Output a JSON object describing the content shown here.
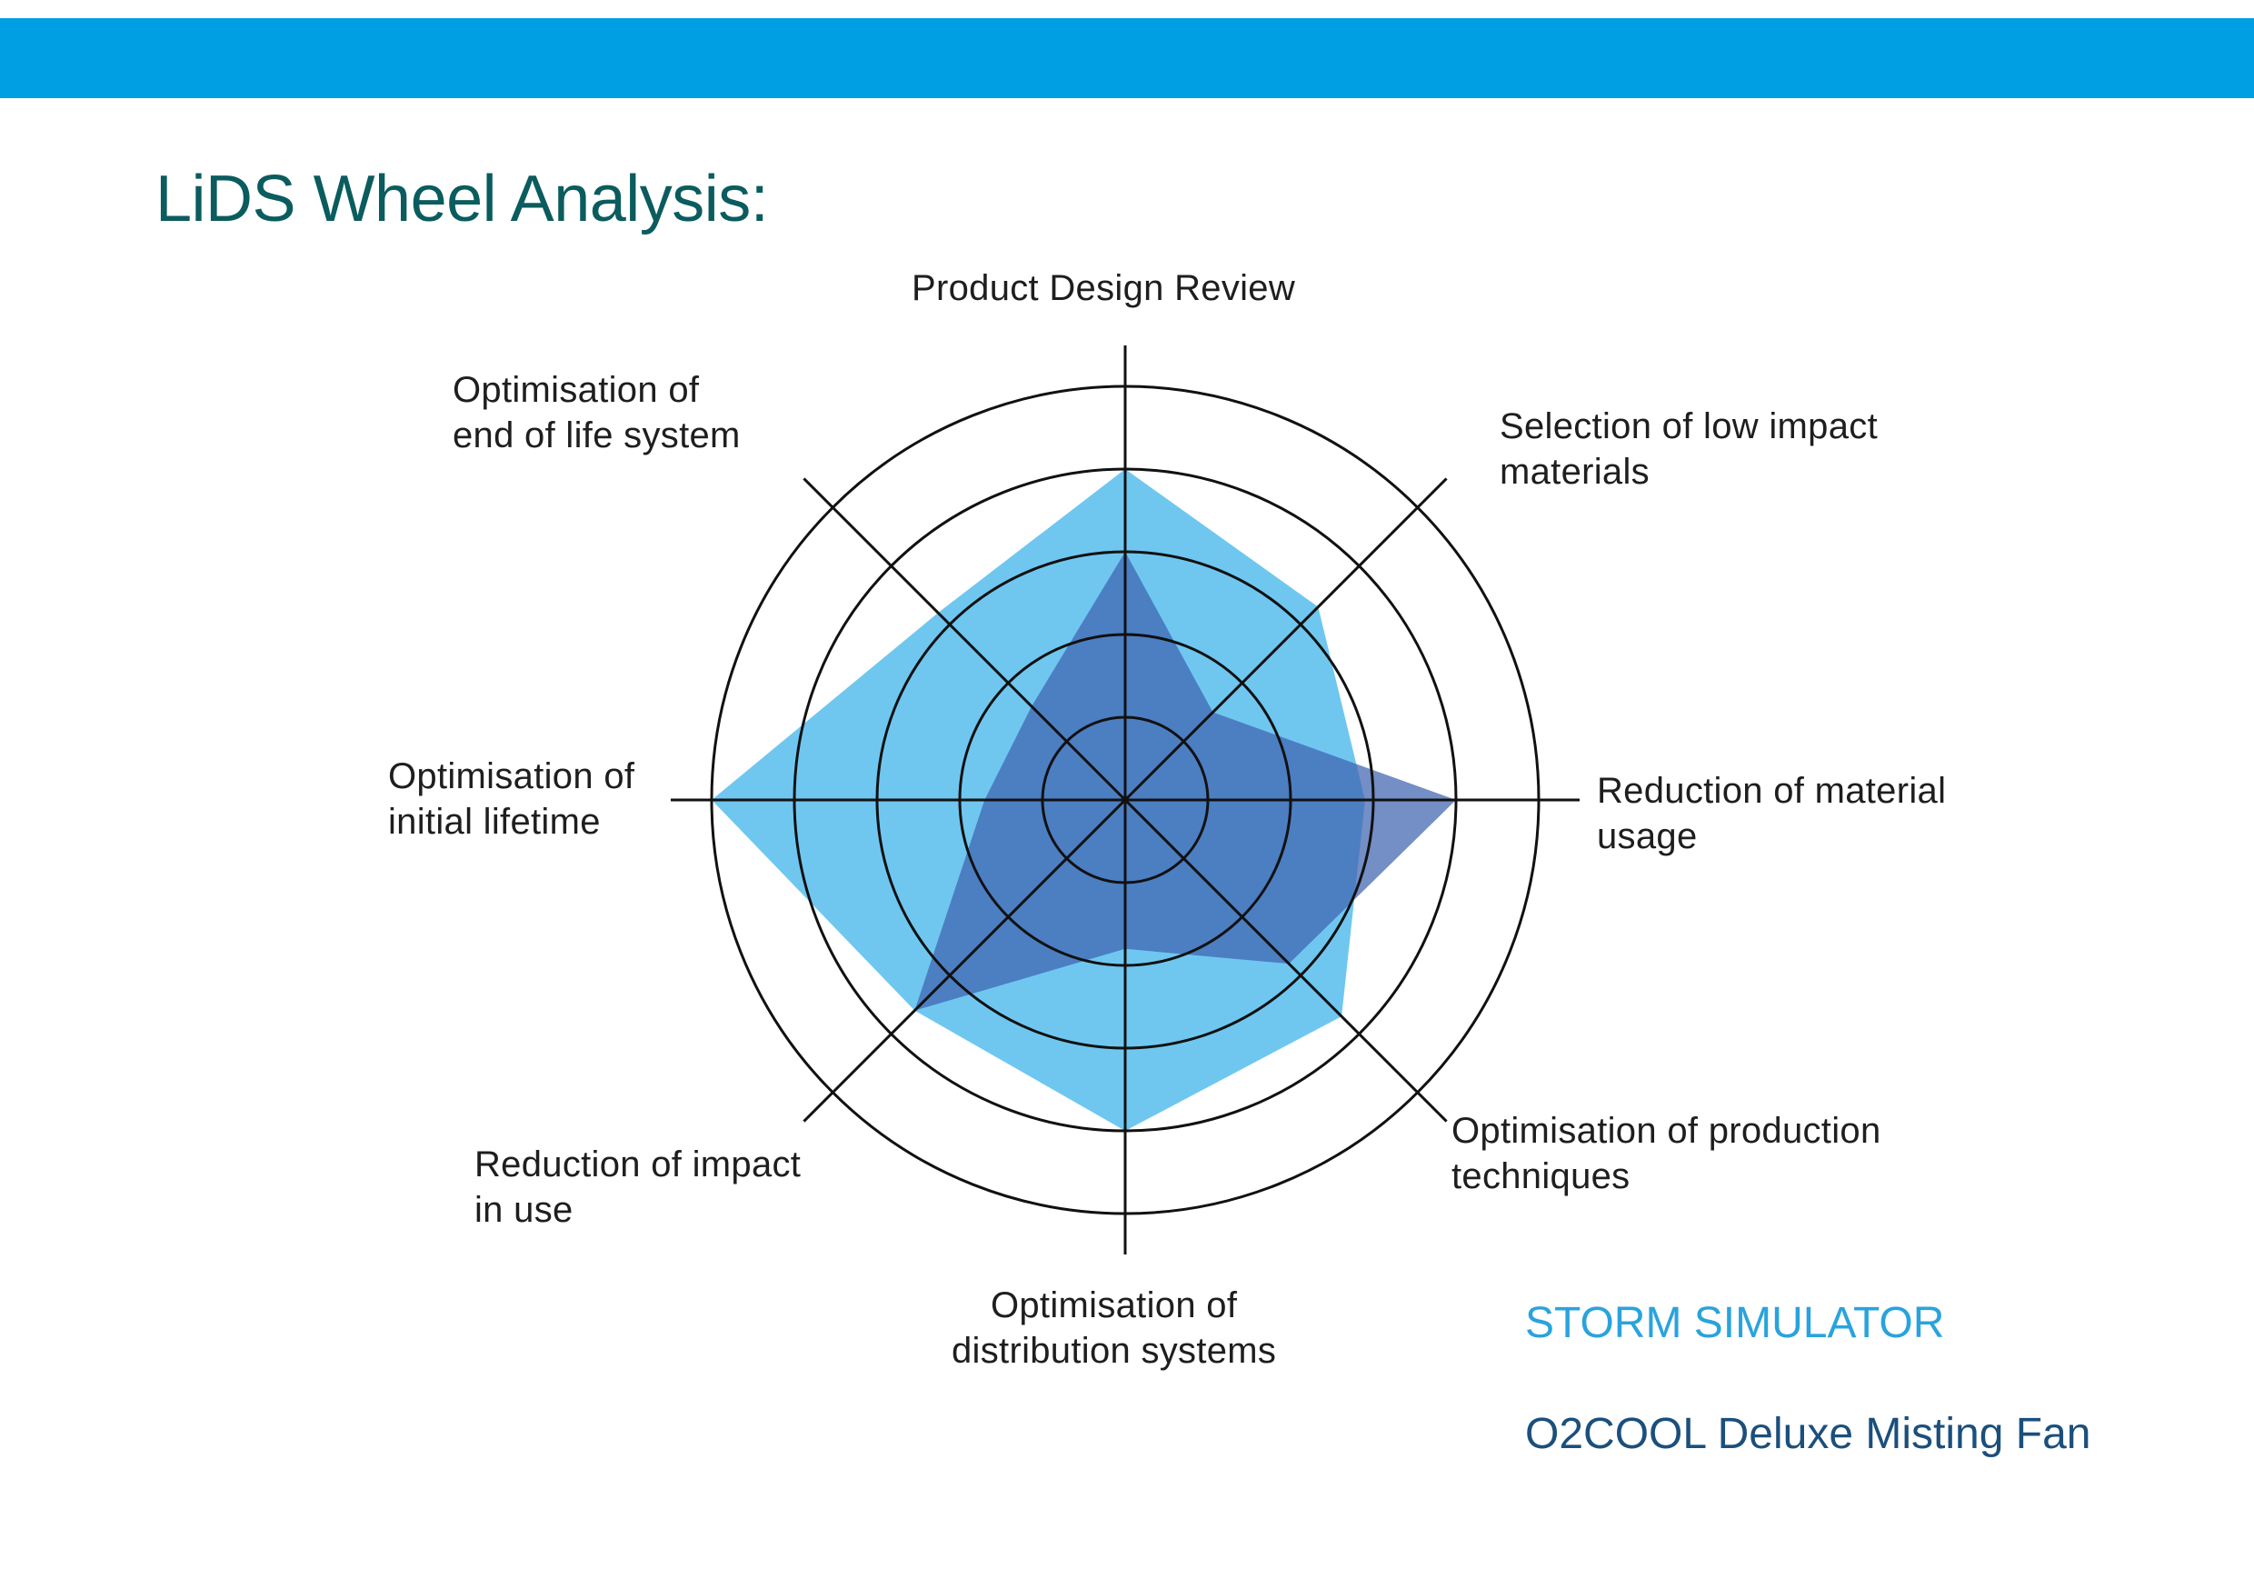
{
  "page": {
    "title": "LiDS Wheel Analysis:",
    "header_bar_color": "#009fe3"
  },
  "chart_data": {
    "type": "radar",
    "title": "LiDS Wheel Analysis:",
    "scale": {
      "min": 0,
      "max": 5,
      "rings": [
        1,
        2,
        3,
        4,
        5
      ]
    },
    "axes": [
      "Product Design Review",
      "Selection of low impact\nmaterials",
      "Reduction of material\nusage",
      "Optimisation of production\ntechniques",
      "Optimisation of\ndistribution systems",
      "Reduction of impact\nin use",
      "Optimisation of\ninitial lifetime",
      "Optimisation of\nend of life system"
    ],
    "series": [
      {
        "name": "STORM SIMULATOR",
        "color": "#5bbfee",
        "opacity": 0.88,
        "values": [
          4,
          3.3,
          2.9,
          3.7,
          4,
          3.6,
          5,
          3.2
        ]
      },
      {
        "name": "O2COOL Deluxe Misting Fan",
        "color": "#3f63b0",
        "opacity": 0.72,
        "values": [
          3,
          1.5,
          4,
          2.8,
          1.8,
          3.6,
          1.7,
          1.6
        ]
      }
    ],
    "grid": true,
    "legend_position": "bottom-right"
  }
}
